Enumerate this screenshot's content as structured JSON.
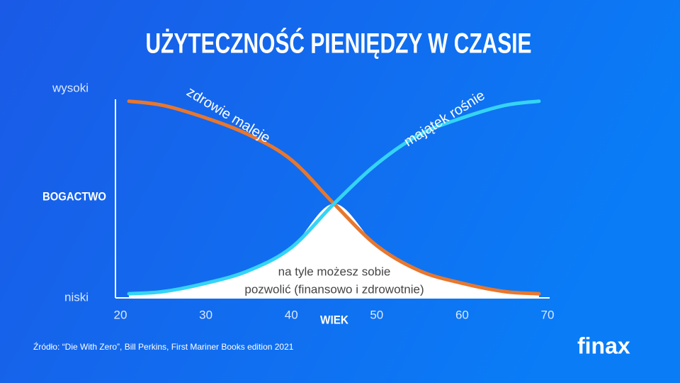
{
  "chart_data": {
    "type": "line",
    "title": "UŻYTECZNOŚĆ PIENIĘDZY W CZASIE",
    "y_label": "BOGACTWO",
    "x_label": "WIEK",
    "x": [
      21,
      25,
      30,
      35,
      40,
      45,
      50,
      55,
      60,
      65,
      69
    ],
    "series": [
      {
        "name": "zdrowie maleje",
        "color": "#e8772e",
        "values": [
          0.94,
          0.92,
          0.86,
          0.78,
          0.66,
          0.45,
          0.25,
          0.13,
          0.07,
          0.03,
          0.02
        ]
      },
      {
        "name": "majątek rośnie",
        "color": "#35d4f5",
        "values": [
          0.02,
          0.03,
          0.07,
          0.13,
          0.24,
          0.45,
          0.64,
          0.78,
          0.86,
          0.92,
          0.94
        ]
      }
    ],
    "xlim": [
      20,
      70
    ],
    "xticks": [
      20,
      30,
      40,
      50,
      60,
      70
    ],
    "ylim": [
      0,
      1
    ],
    "yticks": [
      {
        "value": 0,
        "label": "niski"
      },
      {
        "value": 1,
        "label": "wysoki"
      }
    ],
    "annotation": [
      "na tyle możesz sobie",
      "pozwolić (finansowo i zdrowotnie)"
    ],
    "fill_color": "#ffffff"
  },
  "source": "Źródło: “Die With Zero”, Bill Perkins, First Mariner Books edition 2021",
  "logo": "finax"
}
